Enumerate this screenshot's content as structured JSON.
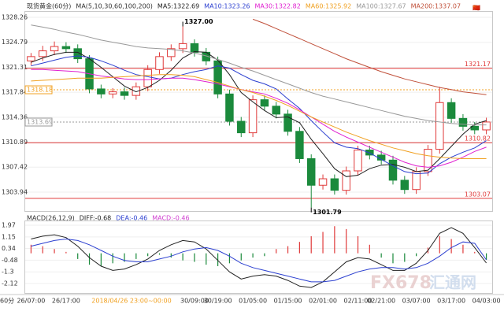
{
  "chart_data": {
    "type": "candlestick",
    "title": "现货黄金(60分)",
    "ma_title": "MA(5,10,30,60,100,200)",
    "categories": [
      "26/07:00",
      null,
      null,
      "26/17:00",
      null,
      null,
      null,
      null,
      null,
      null,
      null,
      null,
      null,
      null,
      "30/09:00",
      null,
      "30/19:00",
      null,
      null,
      "01/05:00",
      null,
      null,
      "01/15:00",
      null,
      null,
      "02/01:00",
      null,
      null,
      "02/11:00",
      null,
      "02/21:00",
      null,
      null,
      "03/07:00",
      null,
      null,
      "03/17:00",
      null,
      null,
      "04/03:00"
    ],
    "cursor_label": "2018/04/26 23:00~00:00",
    "period_label": "60分",
    "up_color": "#e03a3a",
    "down_color": "#1b8a3c",
    "open": [
      1322.2,
      1322.8,
      1323.6,
      1324.2,
      1323.9,
      1322.5,
      1318.3,
      1317.6,
      1317.9,
      1317.4,
      1318.6,
      1321.0,
      1322.8,
      1323.9,
      1324.6,
      1323.4,
      1322.2,
      1317.6,
      1313.8,
      1312.2,
      1316.8,
      1315.9,
      1314.8,
      1312.4,
      1308.6,
      1304.9,
      1305.8,
      1304.2,
      1306.9,
      1309.8,
      1309.1,
      1308.4,
      1305.6,
      1304.3,
      1306.8,
      1309.9,
      1316.4,
      1314.2,
      1313.1,
      1312.6
    ],
    "high": [
      1323.3,
      1324.3,
      1324.9,
      1324.8,
      1324.5,
      1323.0,
      1318.9,
      1318.4,
      1318.5,
      1319.2,
      1321.6,
      1323.4,
      1324.5,
      1327.0,
      1325.2,
      1324.0,
      1322.8,
      1318.2,
      1314.4,
      1317.4,
      1317.4,
      1316.5,
      1315.4,
      1313.0,
      1309.2,
      1306.4,
      1306.4,
      1307.5,
      1310.4,
      1310.4,
      1309.7,
      1309.0,
      1306.2,
      1307.4,
      1310.5,
      1318.6,
      1317.0,
      1314.8,
      1313.7,
      1314.3
    ],
    "low": [
      1321.6,
      1322.2,
      1323.0,
      1323.3,
      1321.9,
      1317.7,
      1317.0,
      1317.0,
      1316.8,
      1316.8,
      1318.0,
      1320.4,
      1322.2,
      1323.3,
      1322.8,
      1321.6,
      1317.0,
      1313.2,
      1311.6,
      1311.6,
      1315.3,
      1314.2,
      1311.8,
      1308.0,
      1301.79,
      1304.3,
      1303.6,
      1303.6,
      1306.3,
      1308.5,
      1307.8,
      1305.0,
      1303.7,
      1303.7,
      1306.2,
      1309.3,
      1313.6,
      1312.5,
      1312.0,
      1312.0
    ],
    "close": [
      1322.8,
      1323.6,
      1324.2,
      1323.9,
      1322.5,
      1318.3,
      1317.6,
      1317.9,
      1317.4,
      1318.6,
      1321.0,
      1322.8,
      1323.9,
      1324.6,
      1323.4,
      1322.2,
      1317.6,
      1313.8,
      1312.2,
      1316.8,
      1315.9,
      1314.8,
      1312.4,
      1308.6,
      1304.9,
      1305.8,
      1304.2,
      1306.9,
      1309.8,
      1309.1,
      1308.4,
      1305.6,
      1304.3,
      1306.8,
      1309.9,
      1316.4,
      1314.2,
      1313.1,
      1312.6,
      1313.7
    ],
    "series": [
      {
        "name": "MA5:1322.69",
        "color": "#222222",
        "values": [
          1322.0,
          1322.6,
          1323.1,
          1323.4,
          1323.4,
          1322.5,
          1321.3,
          1320.0,
          1318.7,
          1317.9,
          1318.5,
          1319.5,
          1320.9,
          1322.6,
          1323.5,
          1323.4,
          1322.3,
          1320.3,
          1317.8,
          1316.5,
          1315.3,
          1314.3,
          1314.4,
          1313.6,
          1311.3,
          1309.3,
          1307.2,
          1306.1,
          1306.3,
          1307.2,
          1307.7,
          1307.8,
          1307.4,
          1306.8,
          1307.0,
          1308.6,
          1310.3,
          1312.0,
          1313.4,
          1313.9
        ]
      },
      {
        "name": "MA10:1323.26",
        "color": "#2b3fd0",
        "values": [
          1321.5,
          1321.9,
          1322.3,
          1322.7,
          1322.9,
          1322.7,
          1322.2,
          1321.6,
          1320.9,
          1320.3,
          1320.0,
          1319.7,
          1319.8,
          1320.3,
          1320.7,
          1321.0,
          1321.5,
          1321.2,
          1320.3,
          1319.5,
          1319.0,
          1318.3,
          1316.9,
          1315.6,
          1313.9,
          1312.3,
          1310.8,
          1310.2,
          1310.0,
          1309.4,
          1308.5,
          1307.6,
          1306.8,
          1306.5,
          1306.6,
          1307.9,
          1308.8,
          1309.5,
          1310.1,
          1311.1
        ]
      },
      {
        "name": "MA30:1322.82",
        "color": "#e020d0",
        "values": [
          1321.0,
          1321.0,
          1320.9,
          1320.8,
          1320.7,
          1320.4,
          1320.1,
          1319.9,
          1319.7,
          1319.6,
          1319.6,
          1319.7,
          1319.8,
          1319.8,
          1319.6,
          1319.3,
          1319.0,
          1318.6,
          1318.2,
          1317.9,
          1317.6,
          1317.0,
          1316.3,
          1315.4,
          1314.4,
          1313.4,
          1312.4,
          1311.6,
          1310.9,
          1310.2,
          1309.5,
          1308.8,
          1308.1,
          1307.6,
          1307.4,
          1307.6,
          1308.1,
          1308.8,
          1309.6,
          1310.2
        ]
      },
      {
        "name": "MA60:1325.92",
        "color": "#f0a020",
        "values": [
          1319.4,
          1319.5,
          1319.6,
          1319.7,
          1319.8,
          1319.8,
          1319.8,
          1319.9,
          1320.0,
          1320.1,
          1320.2,
          1320.3,
          1320.3,
          1320.2,
          1320.0,
          1319.6,
          1319.2,
          1318.7,
          1318.2,
          1317.8,
          1317.3,
          1316.7,
          1316.0,
          1315.2,
          1314.4,
          1313.7,
          1313.0,
          1312.3,
          1311.7,
          1311.1,
          1310.6,
          1310.1,
          1309.7,
          1309.3,
          1309.0,
          1308.8,
          1308.7,
          1308.6,
          1308.6,
          1308.6
        ]
      },
      {
        "name": "MA100:1327.67",
        "color": "#999999",
        "values": [
          1327.2,
          1326.9,
          1326.6,
          1326.2,
          1325.9,
          1325.5,
          1325.1,
          1324.8,
          1324.5,
          1324.2,
          1324.0,
          1323.9,
          1323.8,
          1323.6,
          1323.3,
          1322.9,
          1322.4,
          1321.9,
          1321.3,
          1320.8,
          1320.2,
          1319.6,
          1319.0,
          1318.4,
          1317.8,
          1317.3,
          1316.9,
          1316.5,
          1316.1,
          1315.7,
          1315.3,
          1314.9,
          1314.5,
          1314.2,
          1313.9,
          1313.7,
          1313.5,
          1313.4,
          1313.3,
          1313.3
        ]
      },
      {
        "name": "MA200:1337.07",
        "color": "#c0503a",
        "values": [
          null,
          null,
          null,
          null,
          null,
          null,
          null,
          null,
          null,
          null,
          null,
          null,
          null,
          null,
          null,
          null,
          null,
          null,
          null,
          1328.0,
          1327.4,
          1326.7,
          1326.0,
          1325.3,
          1324.6,
          1323.9,
          1323.2,
          1322.5,
          1321.9,
          1321.3,
          1320.7,
          1320.2,
          1319.7,
          1319.3,
          1318.9,
          1318.5,
          1318.2,
          1317.9,
          1317.7,
          1317.5
        ]
      }
    ],
    "ylim": [
      1301.31,
      1329.14
    ],
    "yticks": [
      1328.26,
      1324.79,
      1321.31,
      1317.84,
      1314.36,
      1310.89,
      1307.42,
      1303.94
    ],
    "hlines": [
      {
        "value": 1321.17,
        "color": "#e03a3a"
      },
      {
        "value": 1310.82,
        "color": "#e03a3a"
      },
      {
        "value": 1303.07,
        "color": "#e03a3a"
      }
    ],
    "markers": [
      {
        "value": 1318.18,
        "color": "#f0a020"
      },
      {
        "value": 1313.69,
        "color": "#999999"
      }
    ],
    "annotations": [
      {
        "value": 1327,
        "label": "1327.00"
      },
      {
        "value": 1301.79,
        "label": "1301.79"
      }
    ],
    "macd": {
      "title": "MACD(26,12,9)",
      "ylim": [
        -2.78,
        2.3
      ],
      "yticks": [
        1.97,
        1.15,
        0.34,
        -0.48,
        -1.3,
        -2.12
      ],
      "histogram": {
        "name": "MACD:-0.46",
        "color": "#d040d0",
        "up_color": "#e03a3a",
        "down_color": "#1b8a3c",
        "values": [
          0.6,
          0.5,
          0.3,
          0.1,
          -0.4,
          -0.8,
          -0.9,
          -0.7,
          -0.6,
          -0.4,
          -0.2,
          -0.1,
          -0.3,
          -0.5,
          -0.6,
          -0.8,
          -0.9,
          -0.7,
          -0.5,
          -0.3,
          -0.2,
          0.3,
          0.5,
          0.8,
          1.2,
          1.5,
          1.9,
          1.7,
          1.2,
          0.6,
          -0.3,
          -0.7,
          -0.6,
          -0.2,
          0.4,
          1.2,
          1.0,
          0.6,
          0.1,
          -0.46
        ]
      },
      "series": [
        {
          "name": "DIFF:-0.68",
          "color": "#222222",
          "values": [
            1.0,
            1.2,
            1.3,
            1.1,
            0.5,
            -0.3,
            -0.9,
            -1.2,
            -1.1,
            -0.8,
            -0.4,
            0.2,
            0.6,
            0.9,
            0.8,
            0.3,
            -0.5,
            -1.3,
            -1.8,
            -1.6,
            -1.5,
            -1.6,
            -1.9,
            -2.3,
            -2.4,
            -2.0,
            -1.3,
            -0.6,
            -0.3,
            -0.4,
            -0.8,
            -1.2,
            -1.2,
            -0.7,
            0.2,
            1.4,
            1.8,
            1.4,
            0.4,
            -0.68
          ]
        },
        {
          "name": "DEA:-0.46",
          "color": "#2b3fd0",
          "values": [
            0.5,
            0.7,
            0.9,
            1.0,
            0.9,
            0.6,
            0.2,
            -0.2,
            -0.5,
            -0.6,
            -0.6,
            -0.4,
            -0.2,
            0.1,
            0.3,
            0.4,
            0.2,
            -0.2,
            -0.7,
            -1.0,
            -1.2,
            -1.4,
            -1.6,
            -1.8,
            -2.0,
            -2.0,
            -1.9,
            -1.6,
            -1.3,
            -1.1,
            -1.0,
            -1.0,
            -1.1,
            -1.0,
            -0.7,
            -0.2,
            0.4,
            0.8,
            0.7,
            -0.46
          ]
        }
      ]
    },
    "watermark": [
      "FX678",
      "汇通网"
    ]
  }
}
